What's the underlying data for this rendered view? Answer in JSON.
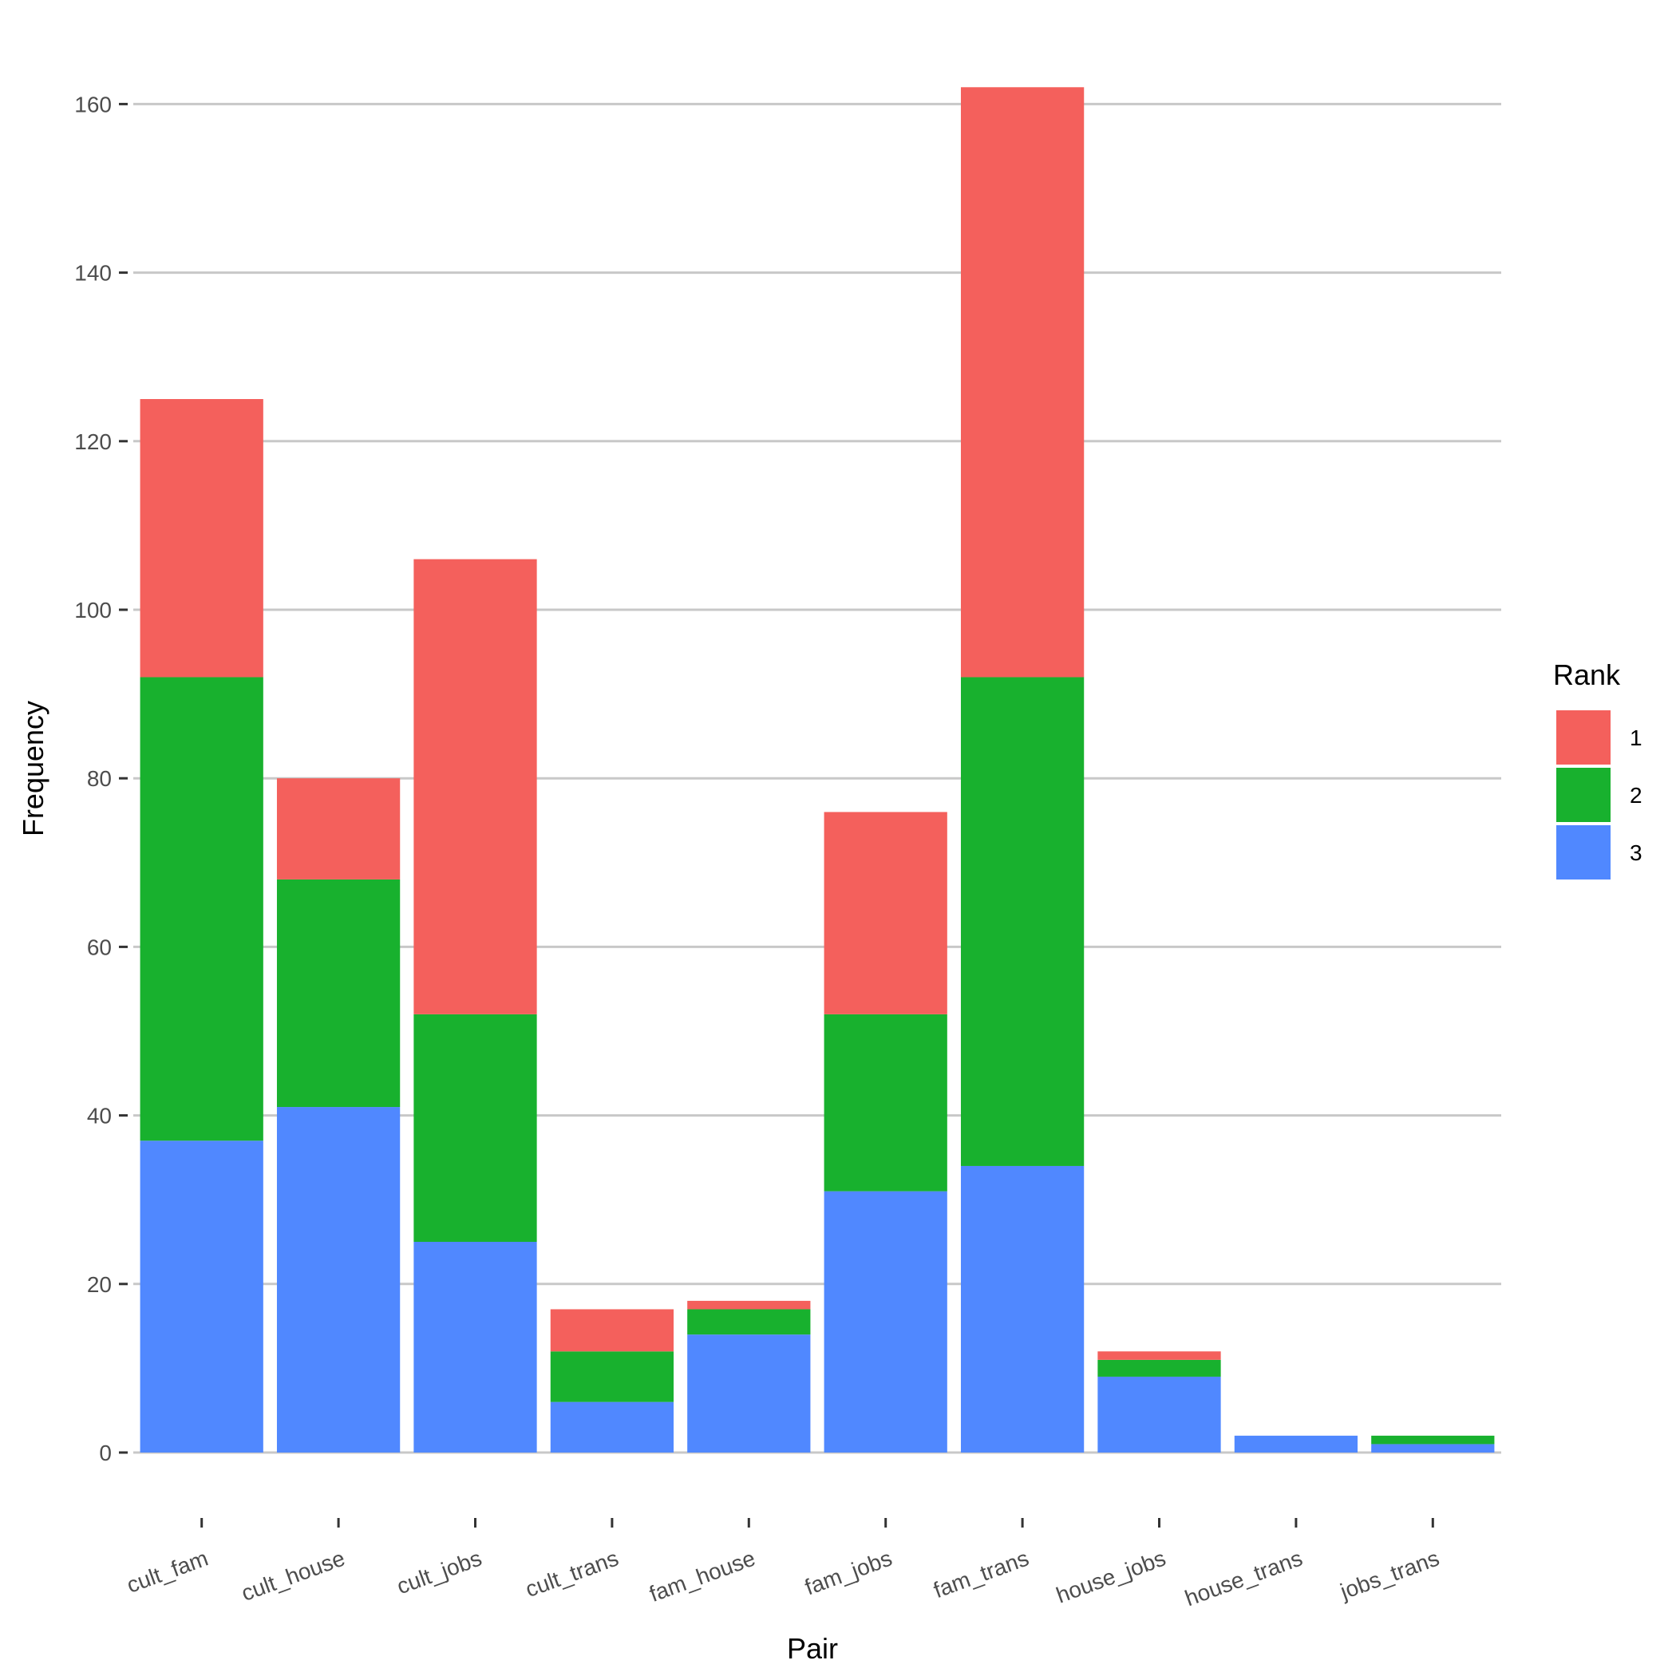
{
  "chart_data": {
    "type": "bar",
    "stacked": true,
    "xlabel": "Pair",
    "ylabel": "Frequency",
    "categories": [
      "cult_fam",
      "cult_house",
      "cult_jobs",
      "cult_trans",
      "fam_house",
      "fam_jobs",
      "fam_trans",
      "house_jobs",
      "house_trans",
      "jobs_trans"
    ],
    "ylim": [
      0,
      165
    ],
    "yticks": [
      0,
      20,
      40,
      60,
      80,
      100,
      120,
      140,
      160
    ],
    "grid": "horizontal",
    "legend": {
      "title": "Rank",
      "placement": "right"
    },
    "series": [
      {
        "name": "3",
        "color": "#5088ff",
        "values": [
          37,
          41,
          25,
          6,
          14,
          31,
          34,
          9,
          2,
          1
        ]
      },
      {
        "name": "2",
        "color": "#18b12e",
        "values": [
          55,
          27,
          27,
          6,
          3,
          21,
          58,
          2,
          0,
          1
        ]
      },
      {
        "name": "1",
        "color": "#f4605c",
        "values": [
          33,
          12,
          54,
          5,
          1,
          24,
          70,
          1,
          0,
          0
        ]
      }
    ],
    "legend_order": [
      "1",
      "2",
      "3"
    ]
  }
}
